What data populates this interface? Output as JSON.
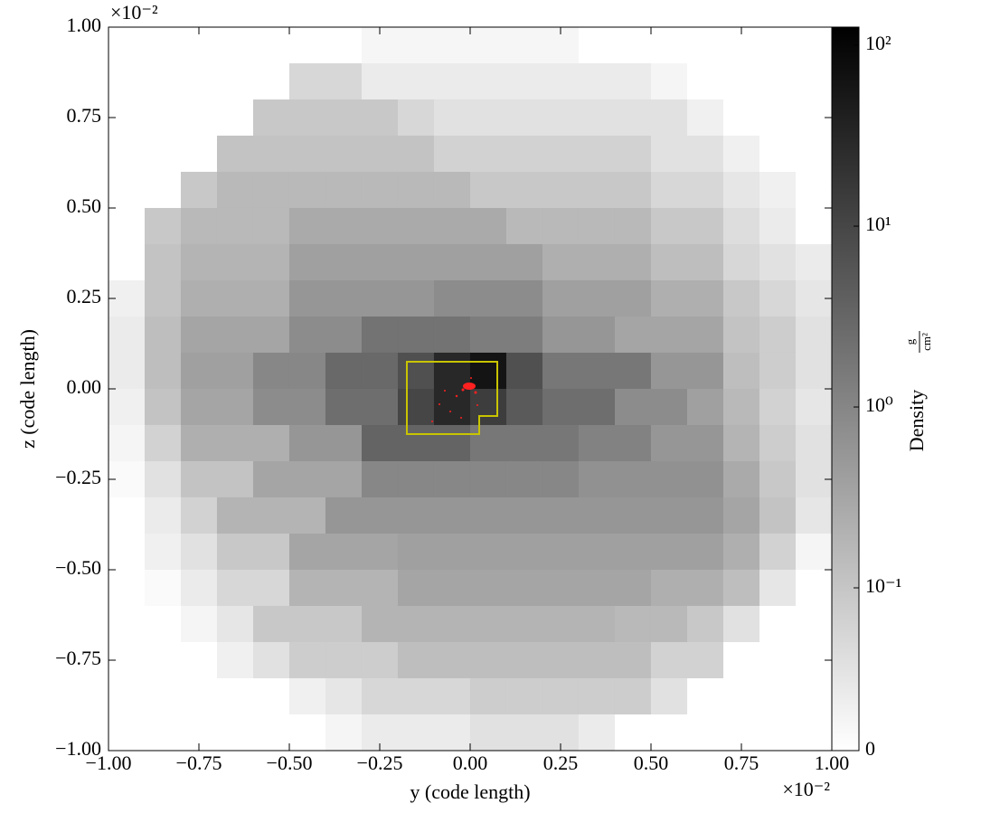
{
  "chart_data": {
    "type": "heatmap",
    "xlabel": "y  (code length)",
    "ylabel": "z  (code length)",
    "x_offset": "×10⁻²",
    "y_offset": "×10⁻²",
    "xlim": [
      -1,
      1
    ],
    "ylim": [
      -1,
      1
    ],
    "xticks": [
      {
        "value": -1,
        "label": "−1.00"
      },
      {
        "value": -0.75,
        "label": "−0.75"
      },
      {
        "value": -0.5,
        "label": "−0.50"
      },
      {
        "value": -0.25,
        "label": "−0.25"
      },
      {
        "value": 0,
        "label": "0.00"
      },
      {
        "value": 0.25,
        "label": "0.25"
      },
      {
        "value": 0.5,
        "label": "0.50"
      },
      {
        "value": 0.75,
        "label": "0.75"
      },
      {
        "value": 1,
        "label": "1.00"
      }
    ],
    "yticks": [
      {
        "value": -1,
        "label": "−1.00"
      },
      {
        "value": -0.75,
        "label": "−0.75"
      },
      {
        "value": -0.5,
        "label": "−0.50"
      },
      {
        "value": -0.25,
        "label": "−0.25"
      },
      {
        "value": 0,
        "label": "0.00"
      },
      {
        "value": 0.25,
        "label": "0.25"
      },
      {
        "value": 0.5,
        "label": "0.50"
      },
      {
        "value": 0.75,
        "label": "0.75"
      },
      {
        "value": 1,
        "label": "1.00"
      }
    ],
    "x": [
      -0.95,
      -0.85,
      -0.75,
      -0.65,
      -0.55,
      -0.45,
      -0.35,
      -0.25,
      -0.15,
      -0.05,
      0.05,
      0.15,
      0.25,
      0.35,
      0.45,
      0.55,
      0.65,
      0.75,
      0.85,
      0.95
    ],
    "y": [
      0.95,
      0.85,
      0.75,
      0.65,
      0.55,
      0.45,
      0.35,
      0.25,
      0.15,
      0.05,
      -0.05,
      -0.15,
      -0.25,
      -0.35,
      -0.45,
      -0.55,
      -0.65,
      -0.75,
      -0.85,
      -0.95
    ],
    "z": [
      [
        null,
        null,
        null,
        null,
        null,
        null,
        null,
        0.015,
        0.015,
        0.015,
        0.015,
        0.015,
        0.015,
        null,
        null,
        null,
        null,
        null,
        null,
        null
      ],
      [
        null,
        null,
        null,
        null,
        null,
        0.07,
        0.07,
        0.035,
        0.035,
        0.035,
        0.035,
        0.035,
        0.035,
        0.035,
        0.035,
        0.017,
        null,
        null,
        null,
        null
      ],
      [
        null,
        null,
        null,
        null,
        0.096,
        0.096,
        0.096,
        0.096,
        0.07,
        0.052,
        0.052,
        0.052,
        0.052,
        0.052,
        0.052,
        0.052,
        0.026,
        null,
        null,
        null
      ],
      [
        null,
        null,
        null,
        0.11,
        0.11,
        0.11,
        0.11,
        0.11,
        0.11,
        0.078,
        0.078,
        0.078,
        0.078,
        0.078,
        0.078,
        0.052,
        0.052,
        0.026,
        null,
        null
      ],
      [
        null,
        null,
        0.096,
        0.16,
        0.16,
        0.16,
        0.16,
        0.16,
        0.16,
        0.16,
        0.096,
        0.096,
        0.096,
        0.096,
        0.096,
        0.07,
        0.07,
        0.044,
        0.026,
        null
      ],
      [
        null,
        0.096,
        0.16,
        0.16,
        0.16,
        0.27,
        0.27,
        0.27,
        0.27,
        0.27,
        0.27,
        0.16,
        0.16,
        0.16,
        0.16,
        0.096,
        0.096,
        0.06,
        0.035,
        null
      ],
      [
        null,
        0.11,
        0.19,
        0.19,
        0.19,
        0.39,
        0.39,
        0.39,
        0.39,
        0.39,
        0.39,
        0.39,
        0.23,
        0.23,
        0.23,
        0.13,
        0.13,
        0.07,
        0.052,
        0.035
      ],
      [
        0.026,
        0.11,
        0.23,
        0.23,
        0.23,
        0.56,
        0.56,
        0.56,
        0.56,
        0.8,
        0.8,
        0.8,
        0.39,
        0.39,
        0.39,
        0.23,
        0.23,
        0.096,
        0.07,
        0.044
      ],
      [
        0.035,
        0.13,
        0.32,
        0.32,
        0.32,
        0.8,
        0.8,
        2.0,
        2.0,
        2.0,
        1.4,
        1.4,
        0.56,
        0.56,
        0.32,
        0.32,
        0.32,
        0.11,
        0.087,
        0.052
      ],
      [
        0.035,
        0.13,
        0.39,
        0.39,
        0.96,
        0.96,
        2.8,
        2.8,
        7,
        30,
        61,
        7,
        1.7,
        1.7,
        1.7,
        0.56,
        0.56,
        0.13,
        0.087,
        0.052
      ],
      [
        0.026,
        0.11,
        0.32,
        0.32,
        0.8,
        0.8,
        2.4,
        2.4,
        10,
        30,
        14,
        4.9,
        2.4,
        2.4,
        0.8,
        0.8,
        0.39,
        0.16,
        0.078,
        0.044
      ],
      [
        0.017,
        0.078,
        0.23,
        0.23,
        0.23,
        0.56,
        0.56,
        3.4,
        3.4,
        3.4,
        1.7,
        1.7,
        1.7,
        1.15,
        1.15,
        0.56,
        0.56,
        0.19,
        0.087,
        0.052
      ],
      [
        0.0087,
        0.052,
        0.11,
        0.11,
        0.32,
        0.32,
        0.32,
        0.96,
        0.96,
        0.96,
        0.96,
        0.96,
        0.96,
        0.67,
        0.67,
        0.67,
        0.67,
        0.27,
        0.096,
        0.052
      ],
      [
        null,
        0.035,
        0.078,
        0.19,
        0.19,
        0.19,
        0.56,
        0.56,
        0.56,
        0.56,
        0.56,
        0.56,
        0.56,
        0.56,
        0.56,
        0.56,
        0.56,
        0.32,
        0.11,
        0.044
      ],
      [
        null,
        0.026,
        0.052,
        0.096,
        0.096,
        0.32,
        0.32,
        0.32,
        0.39,
        0.39,
        0.39,
        0.39,
        0.39,
        0.39,
        0.39,
        0.39,
        0.39,
        0.23,
        0.078,
        0.017
      ],
      [
        null,
        0.0087,
        0.035,
        0.07,
        0.07,
        0.19,
        0.19,
        0.19,
        0.32,
        0.32,
        0.32,
        0.32,
        0.32,
        0.32,
        0.32,
        0.23,
        0.23,
        0.13,
        0.044,
        null
      ],
      [
        null,
        null,
        0.017,
        0.044,
        0.096,
        0.096,
        0.096,
        0.19,
        0.19,
        0.19,
        0.19,
        0.19,
        0.19,
        0.19,
        0.16,
        0.16,
        0.096,
        0.052,
        null,
        null
      ],
      [
        null,
        null,
        null,
        0.026,
        0.052,
        0.087,
        0.087,
        0.087,
        0.13,
        0.13,
        0.13,
        0.13,
        0.13,
        0.13,
        0.13,
        0.078,
        0.078,
        null,
        null,
        null
      ],
      [
        null,
        null,
        null,
        null,
        null,
        0.026,
        0.044,
        0.07,
        0.07,
        0.07,
        0.087,
        0.087,
        0.087,
        0.087,
        0.087,
        0.052,
        null,
        null,
        null,
        null
      ],
      [
        null,
        null,
        null,
        null,
        null,
        null,
        0.017,
        0.035,
        0.035,
        0.035,
        0.052,
        0.052,
        0.052,
        0.035,
        null,
        null,
        null,
        null,
        null,
        null
      ]
    ],
    "colorbar": {
      "label": "Density",
      "unit_numerator": "g",
      "unit_denominator": "cm²",
      "scale": "symlog",
      "linthresh": 0.1,
      "linscale": 0.9,
      "lim": [
        0,
        126
      ],
      "ticks": [
        0,
        {
          "value": 0.1,
          "label": "10⁻¹"
        },
        {
          "value": 1,
          "label": "10⁰"
        },
        {
          "value": 10,
          "label": "10¹"
        },
        {
          "value": 100,
          "label": "10²"
        }
      ]
    }
  }
}
